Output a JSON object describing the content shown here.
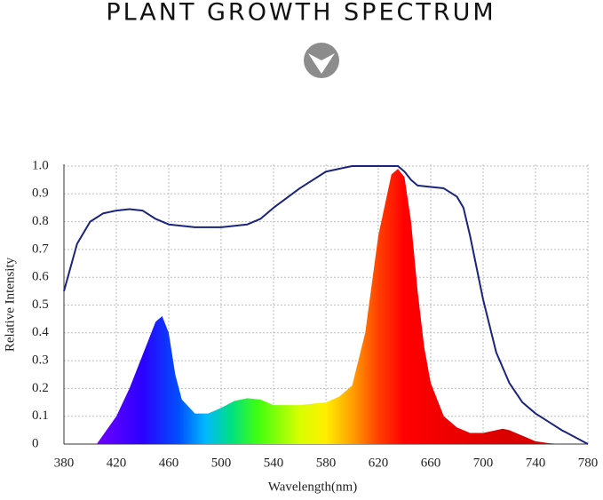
{
  "chart_data": {
    "type": "line",
    "title": "PLANT GROWTH SPECTRUM",
    "x_label": "Wavelength(nm)",
    "y_label": "Relative Intensity",
    "xlim": [
      380,
      780
    ],
    "xticks": [
      380,
      420,
      460,
      500,
      540,
      580,
      620,
      660,
      700,
      740,
      780
    ],
    "ylim": [
      0,
      1
    ],
    "yticks": [
      0,
      0.1,
      0.2,
      0.3,
      0.4,
      0.5,
      0.6,
      0.7,
      0.8,
      0.9,
      {
        "value": 1,
        "label": "1.0"
      }
    ],
    "grid": true,
    "series": [
      {
        "type": "area",
        "color": "spectrum",
        "x": [
          405,
          420,
          430,
          440,
          450,
          455,
          460,
          465,
          470,
          480,
          490,
          500,
          510,
          520,
          530,
          540,
          560,
          580,
          590,
          600,
          610,
          620,
          630,
          635,
          640,
          645,
          650,
          655,
          660,
          670,
          680,
          690,
          700,
          710,
          715,
          720,
          730,
          740,
          750,
          760
        ],
        "values": [
          0,
          0.1,
          0.2,
          0.32,
          0.44,
          0.46,
          0.4,
          0.25,
          0.16,
          0.11,
          0.11,
          0.13,
          0.155,
          0.165,
          0.16,
          0.14,
          0.14,
          0.15,
          0.17,
          0.21,
          0.4,
          0.75,
          0.97,
          0.99,
          0.96,
          0.8,
          0.55,
          0.35,
          0.22,
          0.1,
          0.06,
          0.04,
          0.04,
          0.05,
          0.055,
          0.05,
          0.03,
          0.01,
          0.003,
          0
        ]
      },
      {
        "type": "line",
        "color": "#1a237e",
        "x": [
          380,
          390,
          400,
          410,
          420,
          430,
          440,
          450,
          460,
          480,
          500,
          520,
          530,
          540,
          560,
          580,
          600,
          620,
          635,
          640,
          645,
          650,
          660,
          670,
          680,
          685,
          690,
          700,
          710,
          720,
          730,
          740,
          750,
          760,
          770,
          780
        ],
        "values": [
          0.55,
          0.72,
          0.8,
          0.83,
          0.84,
          0.845,
          0.84,
          0.81,
          0.79,
          0.78,
          0.78,
          0.79,
          0.81,
          0.85,
          0.92,
          0.98,
          1,
          1,
          1,
          0.98,
          0.95,
          0.93,
          0.925,
          0.92,
          0.89,
          0.85,
          0.75,
          0.52,
          0.33,
          0.22,
          0.15,
          0.11,
          0.08,
          0.05,
          0.025,
          0
        ]
      }
    ]
  }
}
